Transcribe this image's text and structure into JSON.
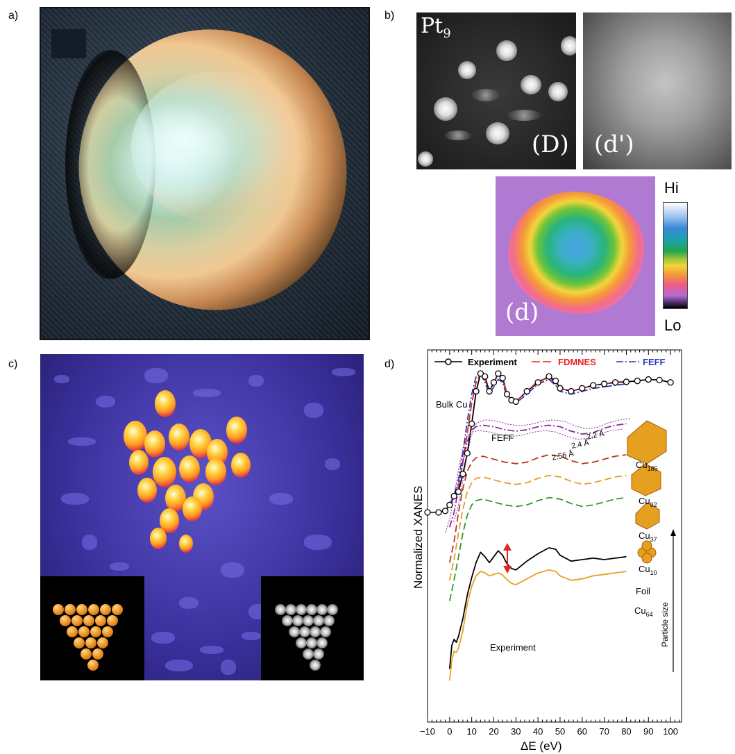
{
  "labels": {
    "a": "a)",
    "b": "b)",
    "c": "c)",
    "d": "d)"
  },
  "panel_b": {
    "pt9_base": "Pt",
    "pt9_sub": "9",
    "label_D": "(D)",
    "label_dprime": "(d')",
    "label_d": "(d)",
    "colorbar_hi": "Hi",
    "colorbar_lo": "Lo"
  },
  "chart_data": {
    "type": "line",
    "xlabel": "ΔE (eV)",
    "ylabel": "Normalized XANES",
    "xlim": [
      -10,
      105
    ],
    "x_ticks": [
      "−10",
      "0",
      "10",
      "20",
      "30",
      "40",
      "50",
      "60",
      "70",
      "80",
      "90",
      "100"
    ],
    "legend": [
      {
        "name": "Experiment",
        "color": "#000000",
        "style": "solid-circle"
      },
      {
        "name": "FDMNES",
        "color": "#e52421",
        "style": "long-dash"
      },
      {
        "name": "FEFF",
        "color": "#2a3ab4",
        "style": "dash-dot"
      }
    ],
    "annotations": {
      "bulk_cu": "Bulk Cu",
      "feff": "FEFF",
      "d1": "2.2 Å",
      "d2": "2.4 Å",
      "d3": "2.56 Å",
      "foil": "Foil",
      "experiment": "Experiment",
      "particle_size": "Particle size"
    },
    "cluster_labels": [
      {
        "base": "Cu",
        "sub": "185",
        "color": "#8a2a9a"
      },
      {
        "base": "Cu",
        "sub": "92",
        "color": "#b43a1a"
      },
      {
        "base": "Cu",
        "sub": "37",
        "color": "#e89a20"
      },
      {
        "base": "Cu",
        "sub": "10",
        "color": "#2a9a2a"
      },
      {
        "base": "Cu",
        "sub": "64",
        "color": "#e8a020"
      }
    ],
    "series": [
      {
        "name": "Experiment",
        "color": "#000000",
        "x": [
          -10,
          -5,
          -2,
          0,
          2,
          4,
          6,
          8,
          10,
          12,
          14,
          16,
          18,
          20,
          22,
          24,
          26,
          28,
          30,
          35,
          40,
          45,
          48,
          50,
          55,
          60,
          65,
          70,
          75,
          80,
          85,
          90,
          95,
          100
        ],
        "y": [
          2.5,
          2.5,
          2.55,
          2.75,
          3.05,
          3.2,
          3.8,
          4.5,
          5.5,
          6.6,
          7.2,
          7.1,
          6.6,
          6.9,
          7.2,
          7.05,
          6.5,
          6.3,
          6.25,
          6.6,
          6.9,
          7.1,
          6.95,
          6.7,
          6.6,
          6.7,
          6.8,
          6.85,
          6.9,
          6.92,
          6.95,
          7.0,
          6.98,
          6.9
        ]
      },
      {
        "name": "FDMNES",
        "color": "#e52421",
        "x": [
          -10,
          -5,
          -2,
          0,
          2,
          4,
          6,
          8,
          10,
          12,
          14,
          16,
          18,
          20,
          22,
          24,
          26,
          28,
          30,
          35,
          40,
          45,
          48,
          50,
          55,
          60,
          65,
          70,
          75,
          80
        ],
        "y": [
          2.5,
          2.5,
          2.55,
          2.7,
          3.0,
          3.4,
          4.2,
          5.2,
          6.2,
          6.9,
          7.2,
          7.0,
          6.6,
          6.9,
          7.15,
          7.0,
          6.5,
          6.3,
          6.25,
          6.6,
          6.95,
          7.05,
          6.9,
          6.7,
          6.6,
          6.7,
          6.8,
          6.85,
          6.9,
          6.95
        ]
      },
      {
        "name": "FEFF",
        "color": "#2a3ab4",
        "x": [
          -10,
          -5,
          -2,
          0,
          2,
          4,
          6,
          8,
          10,
          12,
          14,
          16,
          18,
          20,
          22,
          24,
          26,
          28,
          30,
          35,
          40,
          45,
          48,
          50,
          55,
          60,
          65,
          70,
          75,
          80
        ],
        "y": [
          2.5,
          2.5,
          2.55,
          2.75,
          3.1,
          3.6,
          4.5,
          5.6,
          6.5,
          7.1,
          7.2,
          6.9,
          6.5,
          6.75,
          7.0,
          6.9,
          6.4,
          6.25,
          6.2,
          6.5,
          6.85,
          7.0,
          6.8,
          6.6,
          6.5,
          6.6,
          6.7,
          6.75,
          6.8,
          6.85
        ]
      },
      {
        "name": "Cu185",
        "color": "#8a2a9a",
        "x": [
          0,
          2,
          4,
          6,
          8,
          10,
          12,
          15,
          20,
          25,
          30,
          35,
          40,
          45,
          50,
          55,
          60,
          65,
          70,
          75,
          80
        ],
        "y": [
          2.0,
          2.5,
          3.3,
          4.2,
          4.9,
          5.3,
          5.4,
          5.45,
          5.4,
          5.3,
          5.25,
          5.3,
          5.4,
          5.45,
          5.4,
          5.25,
          5.15,
          5.2,
          5.35,
          5.45,
          5.5
        ]
      },
      {
        "name": "Cu92",
        "color": "#b43a1a",
        "x": [
          0,
          2,
          4,
          6,
          8,
          10,
          12,
          15,
          20,
          25,
          30,
          35,
          40,
          45,
          50,
          55,
          60,
          65,
          70,
          75,
          80
        ],
        "y": [
          0.8,
          1.5,
          2.5,
          3.3,
          3.9,
          4.2,
          4.35,
          4.4,
          4.3,
          4.2,
          4.15,
          4.2,
          4.35,
          4.45,
          4.4,
          4.25,
          4.15,
          4.2,
          4.3,
          4.4,
          4.45
        ]
      },
      {
        "name": "Cu37",
        "color": "#e89a20",
        "x": [
          0,
          2,
          4,
          6,
          8,
          10,
          12,
          15,
          20,
          25,
          30,
          35,
          40,
          45,
          50,
          55,
          60,
          65,
          70,
          75,
          80
        ],
        "y": [
          0.2,
          0.9,
          1.8,
          2.6,
          3.2,
          3.5,
          3.65,
          3.7,
          3.6,
          3.5,
          3.45,
          3.5,
          3.65,
          3.75,
          3.7,
          3.55,
          3.45,
          3.5,
          3.6,
          3.7,
          3.75
        ]
      },
      {
        "name": "Cu10",
        "color": "#2a9a2a",
        "x": [
          0,
          2,
          4,
          6,
          8,
          10,
          12,
          15,
          20,
          25,
          30,
          35,
          40,
          45,
          50,
          55,
          60,
          65,
          70,
          75,
          80
        ],
        "y": [
          -0.5,
          0.2,
          1.0,
          1.8,
          2.4,
          2.75,
          2.9,
          2.95,
          2.85,
          2.75,
          2.7,
          2.75,
          2.9,
          3.0,
          2.95,
          2.8,
          2.7,
          2.75,
          2.85,
          2.95,
          3.0
        ]
      },
      {
        "name": "Foil",
        "color": "#000000",
        "x": [
          0,
          1,
          2,
          3,
          4,
          6,
          8,
          10,
          12,
          14,
          16,
          18,
          20,
          22,
          24,
          26,
          28,
          30,
          35,
          40,
          45,
          48,
          50,
          55,
          60,
          65,
          70,
          75,
          80
        ],
        "y": [
          -2.8,
          -2.0,
          -1.8,
          -1.9,
          -1.7,
          -1.1,
          -0.3,
          0.3,
          0.8,
          1.15,
          1.0,
          0.8,
          1.0,
          1.2,
          1.05,
          0.75,
          0.6,
          0.55,
          0.85,
          1.1,
          1.3,
          1.25,
          1.05,
          0.85,
          0.9,
          0.95,
          0.9,
          0.95,
          1.0
        ]
      },
      {
        "name": "Cu64",
        "color": "#e8a020",
        "x": [
          0,
          1,
          2,
          3,
          4,
          6,
          8,
          10,
          12,
          14,
          16,
          18,
          20,
          22,
          24,
          26,
          28,
          30,
          35,
          40,
          45,
          48,
          50,
          55,
          60,
          65,
          70,
          75,
          80
        ],
        "y": [
          -3.2,
          -2.5,
          -2.2,
          -2.25,
          -2.1,
          -1.5,
          -0.6,
          0.0,
          0.35,
          0.5,
          0.45,
          0.35,
          0.4,
          0.45,
          0.38,
          0.22,
          0.1,
          0.05,
          0.25,
          0.45,
          0.55,
          0.5,
          0.35,
          0.2,
          0.25,
          0.35,
          0.4,
          0.45,
          0.5
        ]
      }
    ]
  }
}
